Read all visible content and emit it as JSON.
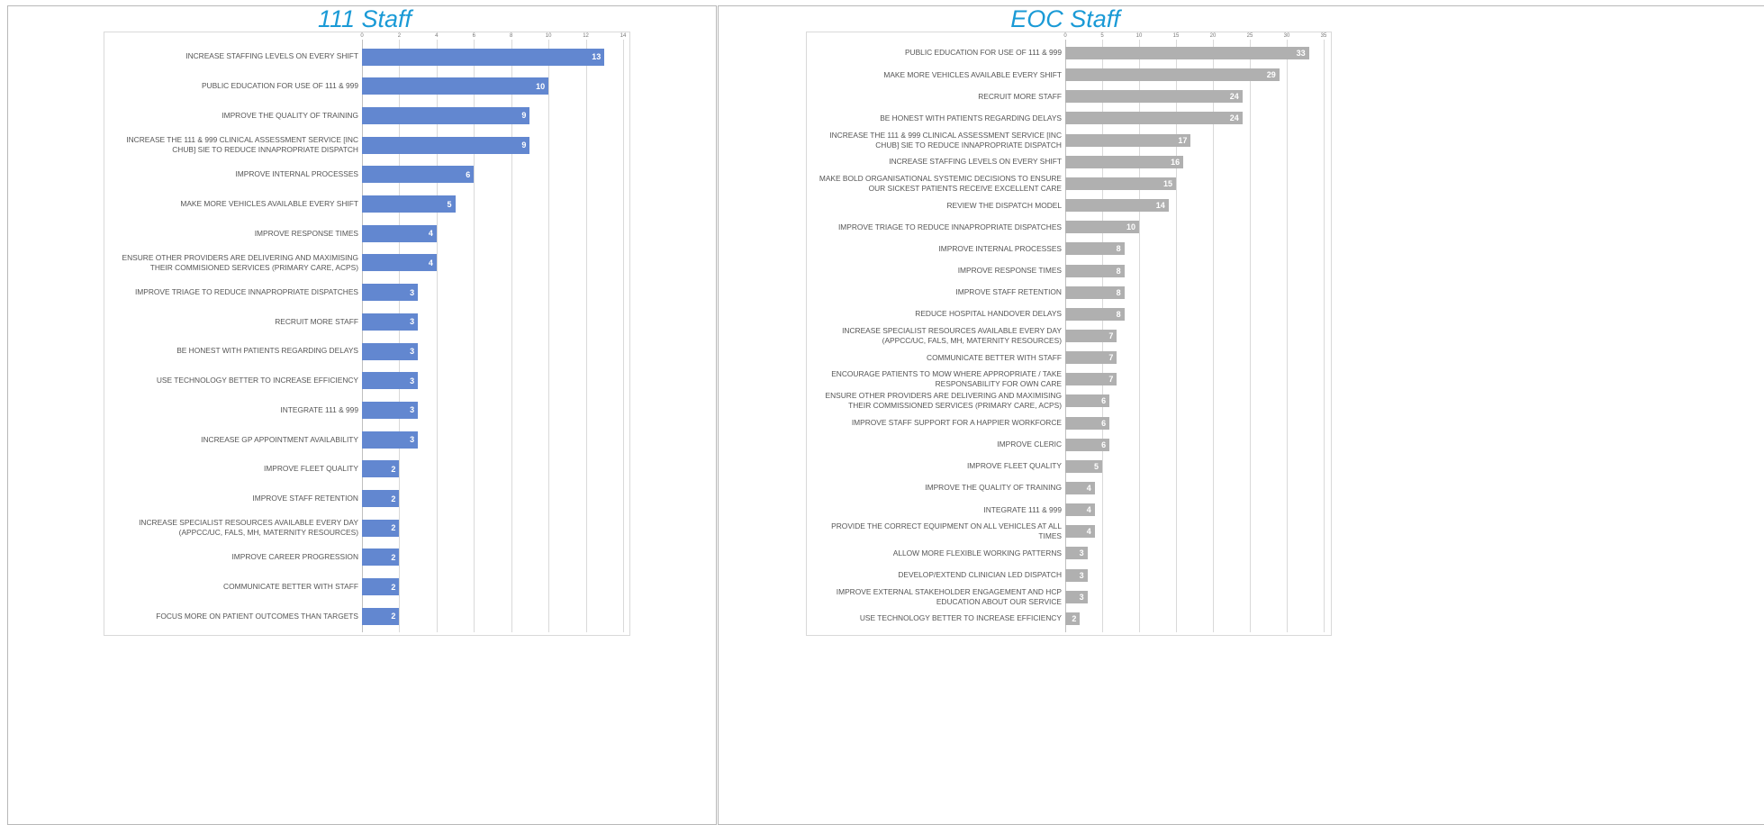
{
  "chart_data": [
    {
      "type": "bar",
      "orientation": "horizontal",
      "title": "111 Staff",
      "color": "#6287d0",
      "grid": true,
      "categories": [
        "INCREASE STAFFING LEVELS ON EVERY SHIFT",
        "PUBLIC EDUCATION FOR USE OF 111 & 999",
        "IMPROVE THE QUALITY OF TRAINING",
        "INCREASE THE 111 & 999 CLINICAL ASSESSMENT SERVICE [INC CHUB] SIE TO REDUCE INNAPROPRIATE DISPATCH",
        "IMPROVE INTERNAL PROCESSES",
        "MAKE MORE VEHICLES AVAILABLE EVERY SHIFT",
        "IMPROVE RESPONSE TIMES",
        "ENSURE OTHER PROVIDERS ARE DELIVERING AND MAXIMISING THEIR COMMISIONED SERVICES (PRIMARY CARE, ACPS)",
        "IMPROVE TRIAGE TO REDUCE INNAPROPRIATE DISPATCHES",
        "RECRUIT MORE STAFF",
        "BE HONEST WITH PATIENTS REGARDING DELAYS",
        "USE TECHNOLOGY BETTER TO INCREASE EFFICIENCY",
        "INTEGRATE 111 & 999",
        "INCREASE GP APPOINTMENT AVAILABILITY",
        "IMPROVE FLEET QUALITY",
        "IMPROVE STAFF RETENTION",
        "INCREASE SPECIALIST RESOURCES AVAILABLE EVERY DAY (APPCC/UC, FALS, MH, MATERNITY RESOURCES)",
        "IMPROVE CAREER PROGRESSION",
        "COMMUNICATE BETTER WITH STAFF",
        "FOCUS MORE ON PATIENT OUTCOMES THAN TARGETS"
      ],
      "values": [
        13,
        10,
        9,
        9,
        6,
        5,
        4,
        4,
        3,
        3,
        3,
        3,
        3,
        3,
        2,
        2,
        2,
        2,
        2,
        2
      ],
      "xlim": [
        0,
        14
      ],
      "xticks": [
        0,
        2,
        4,
        6,
        8,
        10,
        12,
        14
      ]
    },
    {
      "type": "bar",
      "orientation": "horizontal",
      "title": "EOC Staff",
      "color": "#b0b0b0",
      "grid": true,
      "categories": [
        "PUBLIC EDUCATION FOR USE OF 111 & 999",
        "MAKE MORE VEHICLES AVAILABLE EVERY SHIFT",
        "RECRUIT MORE STAFF",
        "BE HONEST WITH PATIENTS REGARDING DELAYS",
        "INCREASE THE 111 & 999 CLINICAL ASSESSMENT SERVICE [INC CHUB] SIE TO REDUCE INNAPROPRIATE DISPATCH",
        "INCREASE STAFFING LEVELS ON EVERY SHIFT",
        "MAKE BOLD ORGANISATIONAL SYSTEMIC DECISIONS TO ENSURE OUR SICKEST PATIENTS RECEIVE EXCELLENT CARE",
        "REVIEW THE DISPATCH MODEL",
        "IMPROVE TRIAGE TO REDUCE INNAPROPRIATE DISPATCHES",
        "IMPROVE INTERNAL PROCESSES",
        "IMPROVE RESPONSE TIMES",
        "IMPROVE STAFF RETENTION",
        "REDUCE HOSPITAL HANDOVER DELAYS",
        "INCREASE SPECIALIST RESOURCES AVAILABLE EVERY DAY (APPCC/UC, FALS, MH, MATERNITY RESOURCES)",
        "COMMUNICATE BETTER WITH STAFF",
        "ENCOURAGE PATIENTS TO MOW WHERE APPROPRIATE / TAKE RESPONSABILITY FOR OWN CARE",
        "ENSURE OTHER PROVIDERS ARE DELIVERING AND MAXIMISING THEIR COMMISSIONED SERVICES (PRIMARY CARE, ACPS)",
        "IMPROVE STAFF SUPPORT FOR A HAPPIER WORKFORCE",
        "IMPROVE CLERIC",
        "IMPROVE FLEET QUALITY",
        "IMPROVE THE QUALITY OF TRAINING",
        "INTEGRATE 111 & 999",
        "PROVIDE THE CORRECT EQUIPMENT ON ALL VEHICLES AT ALL TIMES",
        "ALLOW MORE FLEXIBLE WORKING PATTERNS",
        "DEVELOP/EXTEND CLINICIAN LED DISPATCH",
        "IMPROVE EXTERNAL STAKEHOLDER ENGAGEMENT AND HCP EDUCATION ABOUT OUR SERVICE",
        "USE TECHNOLOGY BETTER TO INCREASE EFFICIENCY"
      ],
      "values": [
        33,
        29,
        24,
        24,
        17,
        16,
        15,
        14,
        10,
        8,
        8,
        8,
        8,
        7,
        7,
        7,
        6,
        6,
        6,
        5,
        4,
        4,
        4,
        3,
        3,
        3,
        2
      ],
      "xlim": [
        0,
        35
      ],
      "xticks": [
        0,
        5,
        10,
        15,
        20,
        25,
        30,
        35
      ]
    }
  ]
}
